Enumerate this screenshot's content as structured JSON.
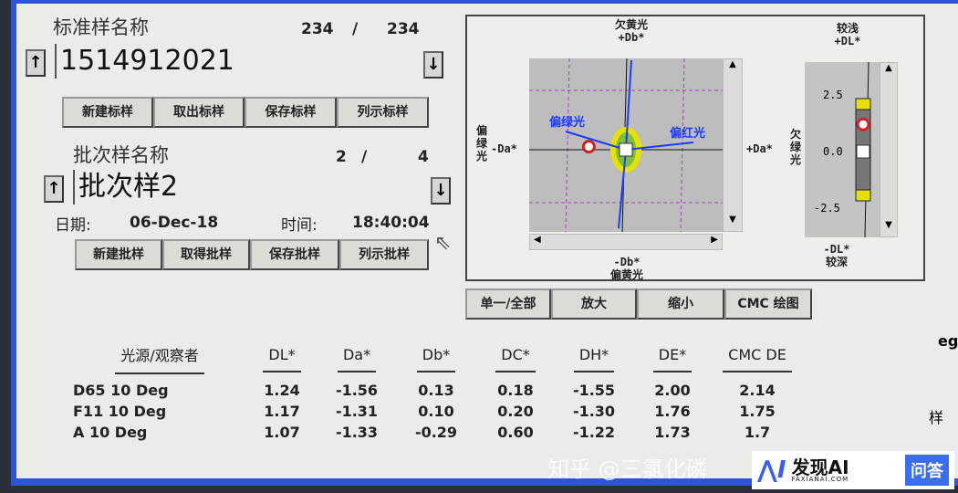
{
  "standard": {
    "title": "标准样名称",
    "index": "234",
    "sep": "/",
    "total": "234",
    "value": "1514912021",
    "buttons": [
      "新建标样",
      "取出标样",
      "保存标样",
      "列示标样"
    ]
  },
  "batch": {
    "title": "批次样名称",
    "index": "2",
    "sep": "/",
    "total": "4",
    "value": "批次样2",
    "date_label": "日期:",
    "date": "06-Dec-18",
    "time_label": "时间:",
    "time": "18:40:04",
    "buttons": [
      "新建批样",
      "取得批样",
      "保存批样",
      "列示批样"
    ]
  },
  "nav_icons": {
    "up": "arrow-up-icon",
    "down": "arrow-down-icon"
  },
  "plot": {
    "top_cn": "欠黄光",
    "top": "+Db*",
    "bottom": "-Db*",
    "bottom_cn": "偏黄光",
    "left": "-Da*",
    "left_cn": "偏绿光",
    "right": "+Da*",
    "in_left": "偏绿光",
    "in_right": "偏红光",
    "dl_top_cn": "较浅",
    "dl_top": "+DL*",
    "dl_bottom": "-DL*",
    "dl_bottom_cn": "较深",
    "dl_side_cn": "欠绿光",
    "dl_ticks": [
      "2.5",
      "0.0",
      "-2.5"
    ],
    "sample_da": -1.56,
    "sample_db": 0.13,
    "sample_dl": 1.24,
    "colors": {
      "arrows": "#1a3cff",
      "tolerance": "#e8e000",
      "sample": "#d02020"
    }
  },
  "plot_buttons": [
    "单一/全部",
    "放大",
    "缩小",
    "CMC 绘图"
  ],
  "table": {
    "headers": [
      "光源/观察者",
      "DL*",
      "Da*",
      "Db*",
      "DC*",
      "DH*",
      "DE*",
      "CMC DE"
    ],
    "rows": [
      [
        "D65 10 Deg",
        "1.24",
        "-1.56",
        "0.13",
        "0.18",
        "-1.55",
        "2.00",
        "2.14"
      ],
      [
        "F11 10 Deg",
        "1.17",
        "-1.31",
        "0.10",
        "0.20",
        "-1.30",
        "1.76",
        "1.75"
      ],
      [
        "A 10 Deg",
        "1.07",
        "-1.33",
        "-0.29",
        "0.60",
        "-1.22",
        "1.73",
        "1.7"
      ]
    ]
  },
  "side_fragments": [
    "eg",
    "样"
  ],
  "watermark": {
    "text": "知乎 @三氯化磷",
    "brand": "发现AI",
    "domain": "FAXIANAI.COM",
    "tag": "问答"
  }
}
